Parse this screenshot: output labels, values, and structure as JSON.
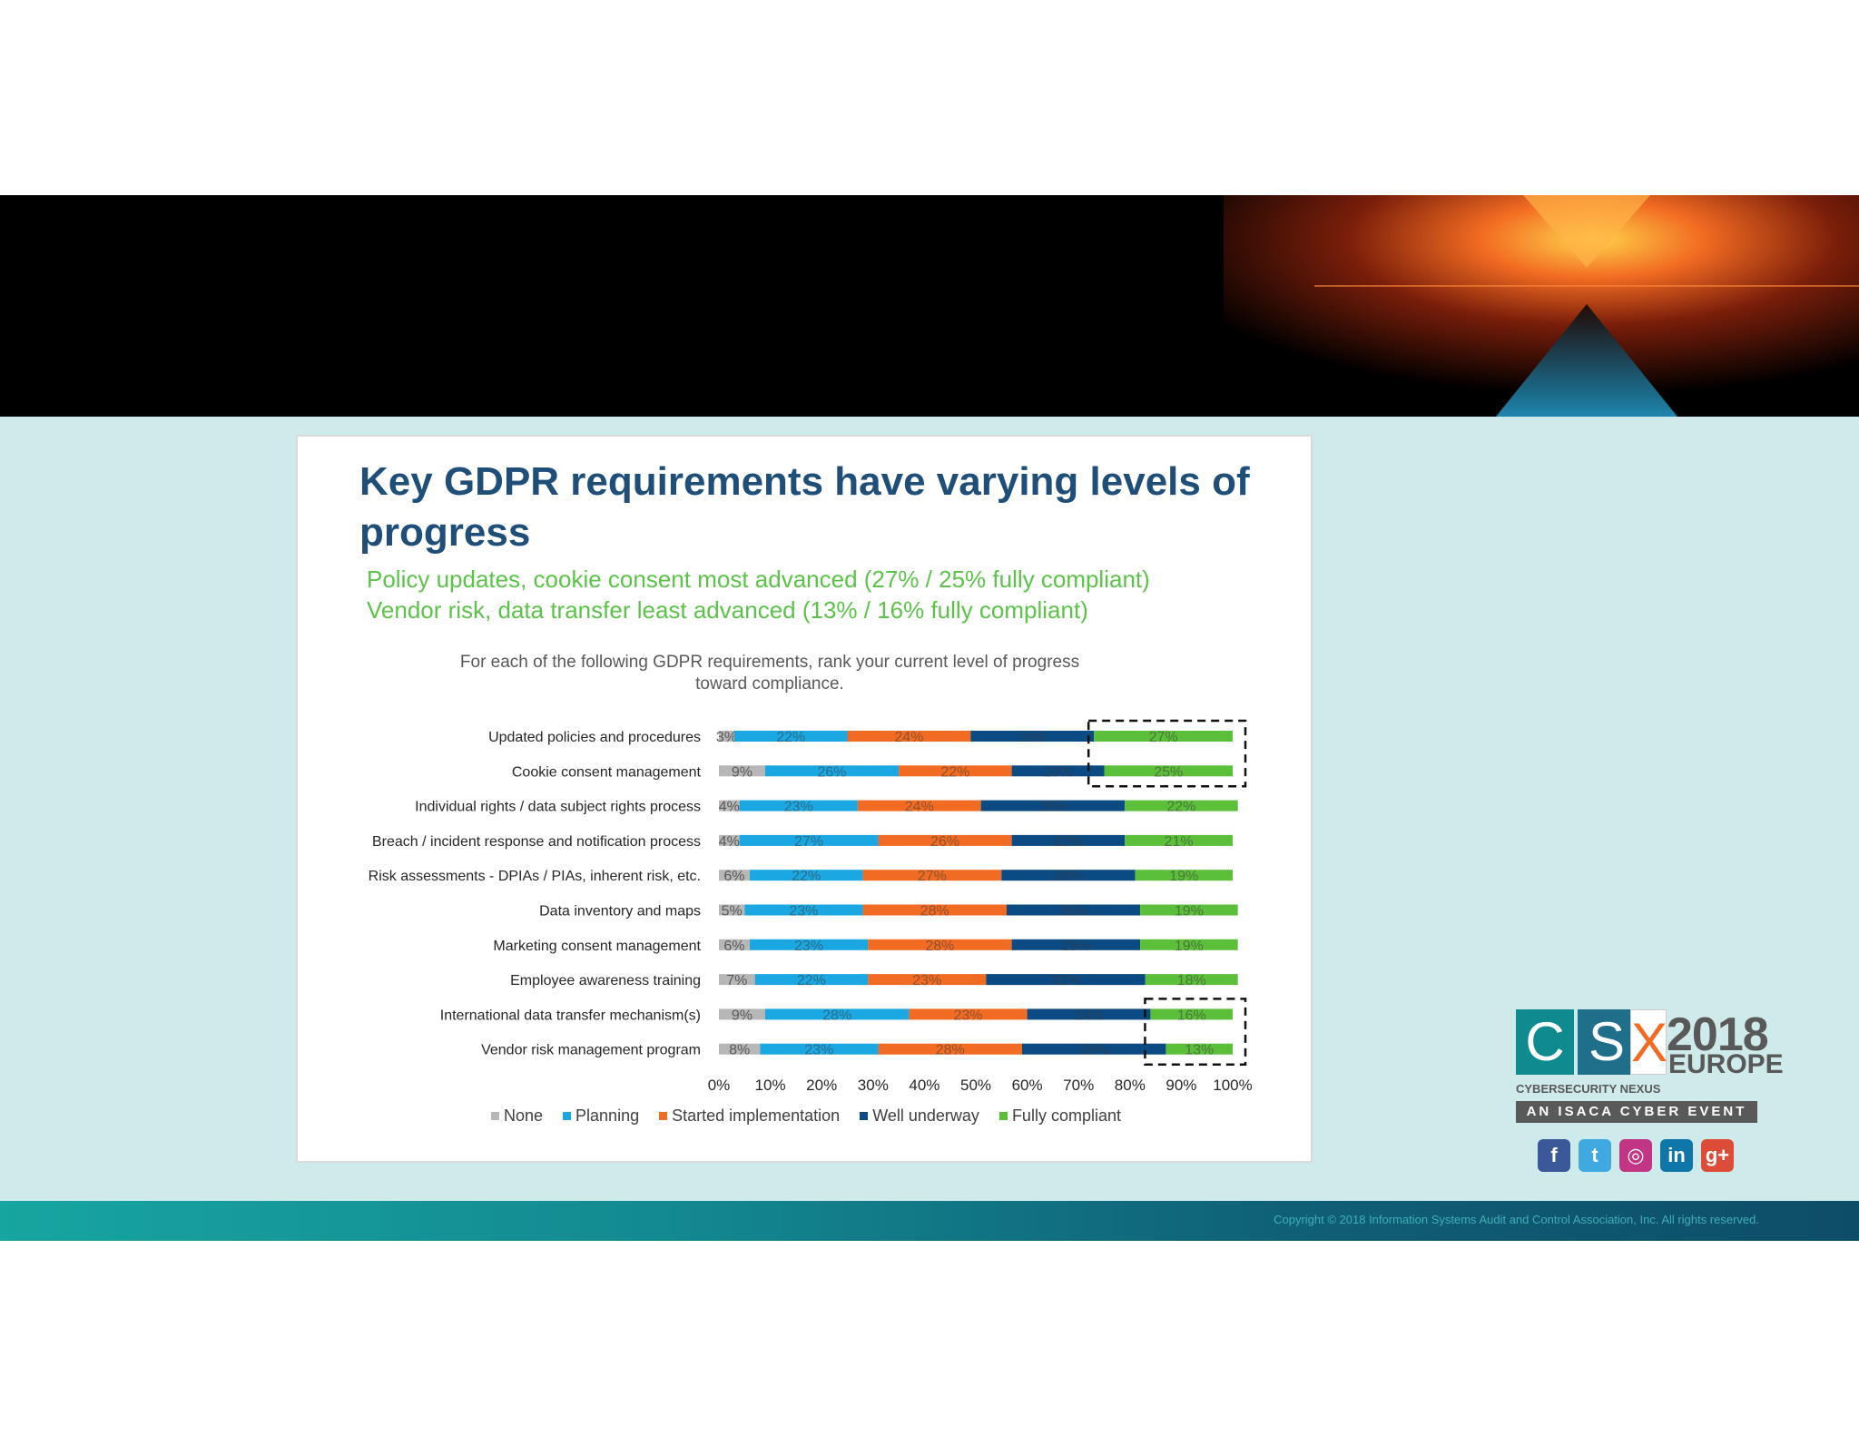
{
  "slide": {
    "title": "Key GDPR requirements have varying levels of progress",
    "subtitle_line1": "Policy updates, cookie consent most advanced (27% / 25% fully compliant)",
    "subtitle_line2": "Vendor risk, data transfer least advanced (13% / 16% fully compliant)",
    "question_line1": "For each of the following GDPR requirements, rank your current level of progress",
    "question_line2": "toward compliance."
  },
  "chart_data": {
    "type": "bar",
    "orientation": "horizontal",
    "stacked": true,
    "categories": [
      "Updated policies and procedures",
      "Cookie consent management",
      "Individual rights / data subject rights process",
      "Breach / incident response and notification process",
      "Risk assessments - DPIAs / PIAs, inherent risk, etc.",
      "Data inventory and maps",
      "Marketing consent management",
      "Employee awareness training",
      "International data transfer mechanism(s)",
      "Vendor risk management program"
    ],
    "series": [
      {
        "name": "None",
        "color": "#b7b7b7",
        "values": [
          3,
          9,
          4,
          4,
          6,
          5,
          6,
          7,
          9,
          8
        ]
      },
      {
        "name": "Planning",
        "color": "#1aa7e2",
        "values": [
          22,
          26,
          23,
          27,
          22,
          23,
          23,
          22,
          28,
          23
        ]
      },
      {
        "name": "Started implementation",
        "color": "#f26b22",
        "values": [
          24,
          22,
          24,
          26,
          27,
          28,
          28,
          23,
          23,
          28
        ]
      },
      {
        "name": "Well underway",
        "color": "#0b4a82",
        "values": [
          24,
          18,
          28,
          22,
          26,
          26,
          25,
          31,
          24,
          28
        ]
      },
      {
        "name": "Fully compliant",
        "color": "#5bbf3a",
        "values": [
          27,
          25,
          22,
          21,
          19,
          19,
          19,
          18,
          16,
          13
        ]
      }
    ],
    "x_ticks": [
      "0%",
      "10%",
      "20%",
      "30%",
      "40%",
      "50%",
      "60%",
      "70%",
      "80%",
      "90%",
      "100%"
    ],
    "xlim": [
      0,
      100
    ],
    "legend_position": "bottom",
    "highlight_groups": [
      [
        0,
        1
      ],
      [
        8,
        9
      ]
    ]
  },
  "logo": {
    "letters": [
      "C",
      "S",
      "X"
    ],
    "year": "2018",
    "region": "EUROPE",
    "tagline": "CYBERSECURITY NEXUS",
    "event": "AN ISACA CYBER EVENT",
    "colors": {
      "c_bg": "#0f8a8e",
      "s_bg": "#1f6f8b",
      "x_color": "#f26b22"
    }
  },
  "social": [
    {
      "name": "facebook",
      "glyph": "f",
      "color": "#3b5998"
    },
    {
      "name": "twitter",
      "glyph": "t",
      "color": "#3fa9e0"
    },
    {
      "name": "instagram",
      "glyph": "◎",
      "color": "#c13584"
    },
    {
      "name": "linkedin",
      "glyph": "in",
      "color": "#0e76a8"
    },
    {
      "name": "googleplus",
      "glyph": "g+",
      "color": "#dd4b39"
    }
  ],
  "footer": {
    "copyright": "Copyright © 2018 Information Systems Audit and Control Association, Inc. All rights reserved."
  }
}
